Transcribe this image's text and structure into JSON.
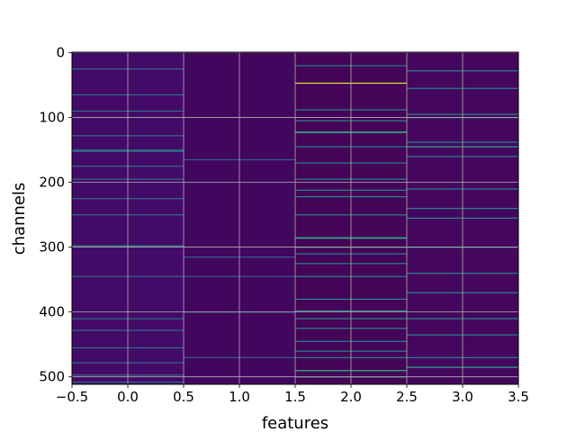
{
  "chart_data": {
    "type": "heatmap",
    "title": "",
    "xlabel": "features",
    "ylabel": "channels",
    "xlim": [
      -0.5,
      3.5
    ],
    "ylim": [
      511.5,
      -0.5
    ],
    "xticks": [
      -0.5,
      0.0,
      0.5,
      1.0,
      1.5,
      2.0,
      2.5,
      3.0,
      3.5
    ],
    "xtick_labels": [
      "−0.5",
      "0.0",
      "0.5",
      "1.0",
      "1.5",
      "2.0",
      "2.5",
      "3.0",
      "3.5"
    ],
    "yticks": [
      0,
      100,
      200,
      300,
      400,
      500
    ],
    "ytick_labels": [
      "0",
      "100",
      "200",
      "300",
      "400",
      "500"
    ],
    "grid": true,
    "colormap": "viridis",
    "rows": 512,
    "columns": [
      0,
      1,
      2,
      3
    ],
    "background_colors": [
      "#440a68",
      "#42065f",
      "#450457",
      "#45075e"
    ],
    "highlights": [
      {
        "column": 0,
        "channels": [
          25,
          65,
          90,
          128,
          150,
          175,
          195,
          225,
          250,
          298,
          345,
          410,
          428,
          455,
          478,
          497,
          508
        ],
        "level": 0.35
      },
      {
        "column": 0,
        "channels": [
          152,
          298
        ],
        "level": 0.45
      },
      {
        "column": 1,
        "channels": [
          165,
          315,
          345,
          400,
          470
        ],
        "level": 0.3
      },
      {
        "column": 2,
        "channels": [
          20,
          47,
          88,
          105,
          122,
          145,
          170,
          195,
          212,
          222,
          250,
          285,
          300,
          310,
          325,
          345,
          380,
          398,
          410,
          425,
          445,
          460,
          470,
          490,
          500
        ],
        "level": 0.45
      },
      {
        "column": 2,
        "channels": [
          47
        ],
        "level": 0.95
      },
      {
        "column": 2,
        "channels": [
          123,
          286,
          490
        ],
        "level": 0.6
      },
      {
        "column": 3,
        "channels": [
          28,
          55,
          95,
          100,
          138,
          145,
          160,
          210,
          240,
          255,
          300,
          340,
          370,
          410,
          435,
          470,
          485
        ],
        "level": 0.45
      },
      {
        "column": 3,
        "channels": [
          145,
          485
        ],
        "level": 0.55
      }
    ]
  }
}
